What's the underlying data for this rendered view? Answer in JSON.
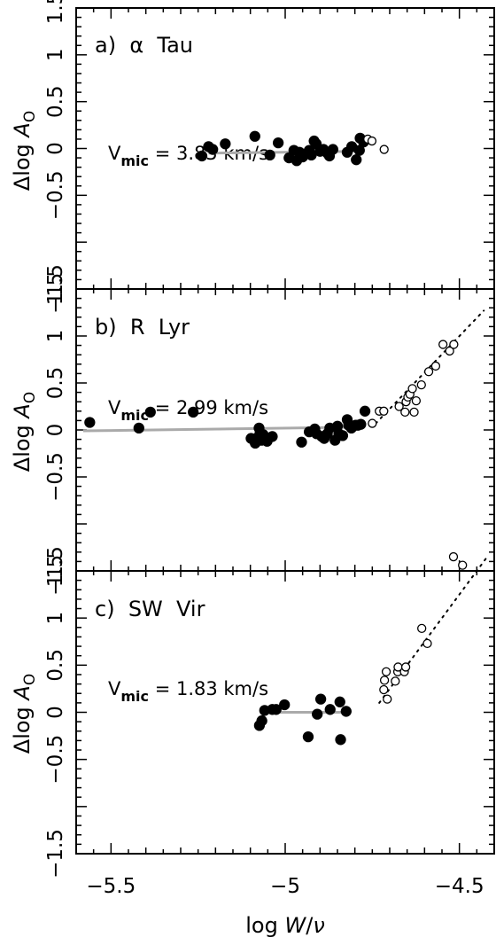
{
  "chart_data": [
    {
      "type": "scatter",
      "panel_label": "a)  α  Tau",
      "vmic": {
        "prefix": "V",
        "sub": "mic",
        "text": " = 3.85 km/s"
      },
      "ylabel": {
        "delta": "Δlog ",
        "A": "A",
        "sub": "O"
      },
      "xlim": [
        -5.6,
        -4.4
      ],
      "ylim": [
        -1.5,
        1.5
      ],
      "yticks": [
        -1.5,
        -0.5,
        0,
        0.5,
        1,
        1.5
      ],
      "ytick_labels": [
        "−1.5",
        "−0.5",
        "0",
        "0.5",
        "1",
        "1.5"
      ],
      "series": [
        {
          "marker": "filled",
          "x": [
            -5.239,
            -5.22,
            -5.208,
            -5.172,
            -5.087,
            -5.044,
            -5.02,
            -4.989,
            -4.975,
            -4.967,
            -4.959,
            -4.95,
            -4.943,
            -4.931,
            -4.925,
            -4.917,
            -4.911,
            -4.9,
            -4.89,
            -4.879,
            -4.873,
            -4.863,
            -4.822,
            -4.809,
            -4.796,
            -4.787,
            -4.785,
            -4.775
          ],
          "y": [
            -0.08,
            0.02,
            -0.01,
            0.05,
            0.13,
            -0.07,
            0.06,
            -0.1,
            -0.02,
            -0.13,
            -0.04,
            -0.09,
            -0.06,
            -0.02,
            -0.07,
            0.08,
            0.05,
            -0.03,
            -0.01,
            -0.05,
            -0.08,
            -0.01,
            -0.04,
            0.02,
            -0.12,
            -0.02,
            0.11,
            0.07
          ]
        },
        {
          "marker": "open",
          "x": [
            -4.763,
            -4.751,
            -4.716
          ],
          "y": [
            0.1,
            0.08,
            -0.01
          ]
        }
      ],
      "fit_line": {
        "x": [
          -5.22,
          -4.79
        ],
        "y": [
          -0.05,
          -0.03
        ]
      }
    },
    {
      "type": "scatter",
      "panel_label": "b)  R  Lyr",
      "vmic": {
        "prefix": "V",
        "sub": "mic",
        "text": " = 2.99 km/s"
      },
      "ylabel": {
        "delta": "Δlog ",
        "A": "A",
        "sub": "O"
      },
      "xlim": [
        -5.6,
        -4.4
      ],
      "ylim": [
        -1.5,
        1.5
      ],
      "yticks": [
        -1.5,
        -0.5,
        0,
        0.5,
        1,
        1.5
      ],
      "ytick_labels": [
        "−1.5",
        "−0.5",
        "0",
        "0.5",
        "1",
        "1.5"
      ],
      "series": [
        {
          "marker": "filled",
          "x": [
            -5.561,
            -5.42,
            -5.387,
            -5.264,
            -5.098,
            -5.086,
            -5.079,
            -5.075,
            -5.072,
            -5.068,
            -5.063,
            -5.059,
            -5.052,
            -5.037,
            -4.953,
            -4.931,
            -4.915,
            -4.91,
            -4.895,
            -4.888,
            -4.879,
            -4.872,
            -4.857,
            -4.85,
            -4.846,
            -4.835,
            -4.822,
            -4.818,
            -4.81,
            -4.798,
            -4.791,
            -4.783,
            -4.771
          ],
          "y": [
            0.08,
            0.02,
            0.19,
            0.19,
            -0.09,
            -0.14,
            -0.08,
            0.02,
            -0.03,
            -0.11,
            -0.05,
            -0.09,
            -0.12,
            -0.07,
            -0.13,
            -0.02,
            0.01,
            -0.04,
            -0.07,
            -0.09,
            -0.04,
            0.02,
            -0.11,
            0.04,
            -0.04,
            -0.06,
            0.11,
            0.05,
            0.02,
            0.05,
            0.05,
            0.06,
            0.2
          ]
        },
        {
          "marker": "open",
          "x": [
            -4.75,
            -4.73,
            -4.717,
            -4.673,
            -4.656,
            -4.653,
            -4.648,
            -4.642,
            -4.635,
            -4.63,
            -4.624,
            -4.609,
            -4.588,
            -4.568,
            -4.547,
            -4.528,
            -4.516
          ],
          "y": [
            0.07,
            0.2,
            0.2,
            0.25,
            0.19,
            0.3,
            0.35,
            0.38,
            0.44,
            0.19,
            0.31,
            0.48,
            0.62,
            0.68,
            0.91,
            0.84,
            0.91
          ]
        }
      ],
      "fit_line": {
        "x": [
          -5.58,
          -4.79
        ],
        "y": [
          -0.01,
          0.03
        ]
      },
      "dotted_trend": {
        "x": [
          -4.74,
          -4.43
        ],
        "y": [
          0.07,
          1.27
        ]
      }
    },
    {
      "type": "scatter",
      "panel_label": "c)  SW  Vir",
      "vmic": {
        "prefix": "V",
        "sub": "mic",
        "text": " = 1.83 km/s"
      },
      "ylabel": {
        "delta": "Δlog ",
        "A": "A",
        "sub": "O"
      },
      "xlim": [
        -5.6,
        -4.4
      ],
      "ylim": [
        -1.5,
        1.5
      ],
      "yticks": [
        -1.5,
        -0.5,
        0,
        0.5,
        1,
        1.5
      ],
      "ytick_labels": [
        "−1.5",
        "−0.5",
        "0",
        "0.5",
        "1",
        "1.5"
      ],
      "xticks": [
        -5.5,
        -5,
        -4.5
      ],
      "xtick_labels": [
        "−5.5",
        "−5",
        "−4.5"
      ],
      "series": [
        {
          "marker": "filled",
          "x": [
            -5.074,
            -5.067,
            -5.059,
            -5.037,
            -5.026,
            -5.002,
            -4.934,
            -4.908,
            -4.898,
            -4.871,
            -4.843,
            -4.841,
            -4.825
          ],
          "y": [
            -0.14,
            -0.09,
            0.02,
            0.03,
            0.03,
            0.08,
            -0.26,
            -0.02,
            0.14,
            0.03,
            0.11,
            -0.29,
            0.01
          ]
        },
        {
          "marker": "open",
          "x": [
            -4.717,
            -4.715,
            -4.71,
            -4.707,
            -4.684,
            -4.677,
            -4.676,
            -4.658,
            -4.654,
            -4.608,
            -4.592,
            -4.517,
            -4.491
          ],
          "y": [
            0.24,
            0.34,
            0.43,
            0.14,
            0.33,
            0.43,
            0.48,
            0.43,
            0.48,
            0.89,
            0.73,
            1.65,
            1.56
          ]
        }
      ],
      "fit_line": {
        "x": [
          -5.07,
          -4.82
        ],
        "y": [
          0.0,
          0.0
        ]
      },
      "dotted_trend": {
        "x": [
          -4.73,
          -4.42
        ],
        "y": [
          0.1,
          1.65
        ]
      }
    }
  ],
  "xlabel": {
    "prefix": "log ",
    "var": "W",
    "slash": "/",
    "nu": "ν"
  }
}
